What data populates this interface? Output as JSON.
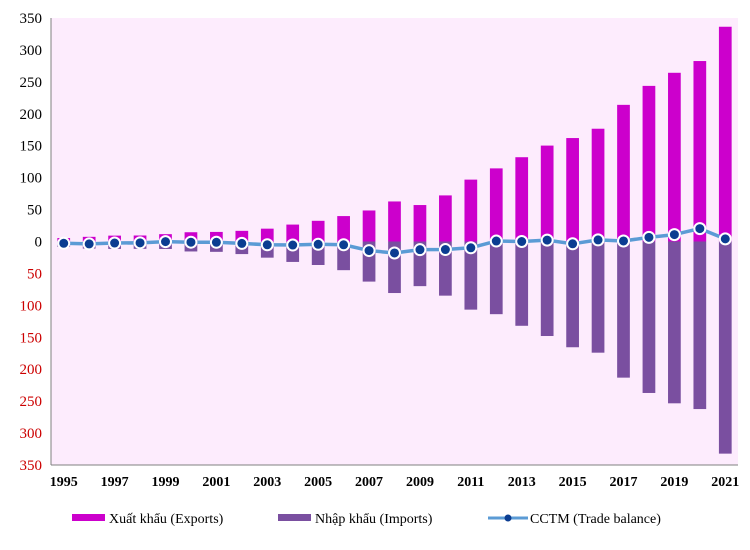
{
  "chart_data": {
    "type": "bar",
    "title": "",
    "xlabel": "",
    "ylabel": "",
    "ylim": [
      -350,
      350
    ],
    "grid": false,
    "legend_position": "bottom",
    "categories": [
      "1995",
      "1996",
      "1997",
      "1998",
      "1999",
      "2000",
      "2001",
      "2002",
      "2003",
      "2004",
      "2005",
      "2006",
      "2007",
      "2008",
      "2009",
      "2010",
      "2011",
      "2012",
      "2013",
      "2014",
      "2015",
      "2016",
      "2017",
      "2018",
      "2019",
      "2020",
      "2021"
    ],
    "x_tick_labels": [
      "1995",
      "1997",
      "1999",
      "2001",
      "2003",
      "2005",
      "2007",
      "2009",
      "2011",
      "2013",
      "2015",
      "2017",
      "2019",
      "2021"
    ],
    "y_ticks": [
      {
        "value": 350,
        "label": "350",
        "color": "#000000"
      },
      {
        "value": 300,
        "label": "300",
        "color": "#000000"
      },
      {
        "value": 250,
        "label": "250",
        "color": "#000000"
      },
      {
        "value": 200,
        "label": "200",
        "color": "#000000"
      },
      {
        "value": 150,
        "label": "150",
        "color": "#000000"
      },
      {
        "value": 100,
        "label": "100",
        "color": "#000000"
      },
      {
        "value": 50,
        "label": "50",
        "color": "#000000"
      },
      {
        "value": 0,
        "label": "0",
        "color": "#000000"
      },
      {
        "value": -50,
        "label": "50",
        "color": "#cc0000"
      },
      {
        "value": -100,
        "label": "100",
        "color": "#cc0000"
      },
      {
        "value": -150,
        "label": "150",
        "color": "#cc0000"
      },
      {
        "value": -200,
        "label": "200",
        "color": "#cc0000"
      },
      {
        "value": -250,
        "label": "250",
        "color": "#cc0000"
      },
      {
        "value": -300,
        "label": "300",
        "color": "#cc0000"
      },
      {
        "value": -350,
        "label": "350",
        "color": "#cc0000"
      }
    ],
    "series": [
      {
        "name": "Xuất khẩu (Exports)",
        "kind": "bar",
        "color": "#cc00cc",
        "values": [
          5.4,
          7.3,
          9.2,
          9.4,
          11.5,
          14.5,
          15.0,
          16.7,
          20.1,
          26.5,
          32.4,
          39.8,
          48.6,
          62.7,
          57.1,
          72.2,
          96.9,
          114.5,
          132.0,
          150.2,
          162.0,
          176.6,
          214.0,
          243.7,
          264.2,
          282.6,
          336.3
        ]
      },
      {
        "name": "Nhập khẩu (Imports)",
        "kind": "bar",
        "color": "#7a4fa0",
        "values": [
          -8.2,
          -11.1,
          -11.6,
          -11.5,
          -11.7,
          -15.6,
          -16.2,
          -19.7,
          -25.3,
          -32.0,
          -36.8,
          -44.9,
          -62.8,
          -80.7,
          -69.9,
          -84.8,
          -106.7,
          -113.8,
          -132.0,
          -148.0,
          -165.6,
          -174.1,
          -213.2,
          -237.2,
          -253.4,
          -262.4,
          -332.2
        ]
      },
      {
        "name": "CCTM (Trade balance)",
        "kind": "line",
        "color": "#5b9bd5",
        "values": [
          -2.8,
          -3.8,
          -2.4,
          -2.1,
          -0.2,
          -1.1,
          -1.2,
          -3.0,
          -5.1,
          -5.5,
          -4.4,
          -5.1,
          -14.2,
          -18.0,
          -12.8,
          -12.6,
          -9.8,
          0.7,
          0.0,
          2.2,
          -3.6,
          2.5,
          0.8,
          6.5,
          10.8,
          20.2,
          4.1
        ]
      }
    ]
  }
}
